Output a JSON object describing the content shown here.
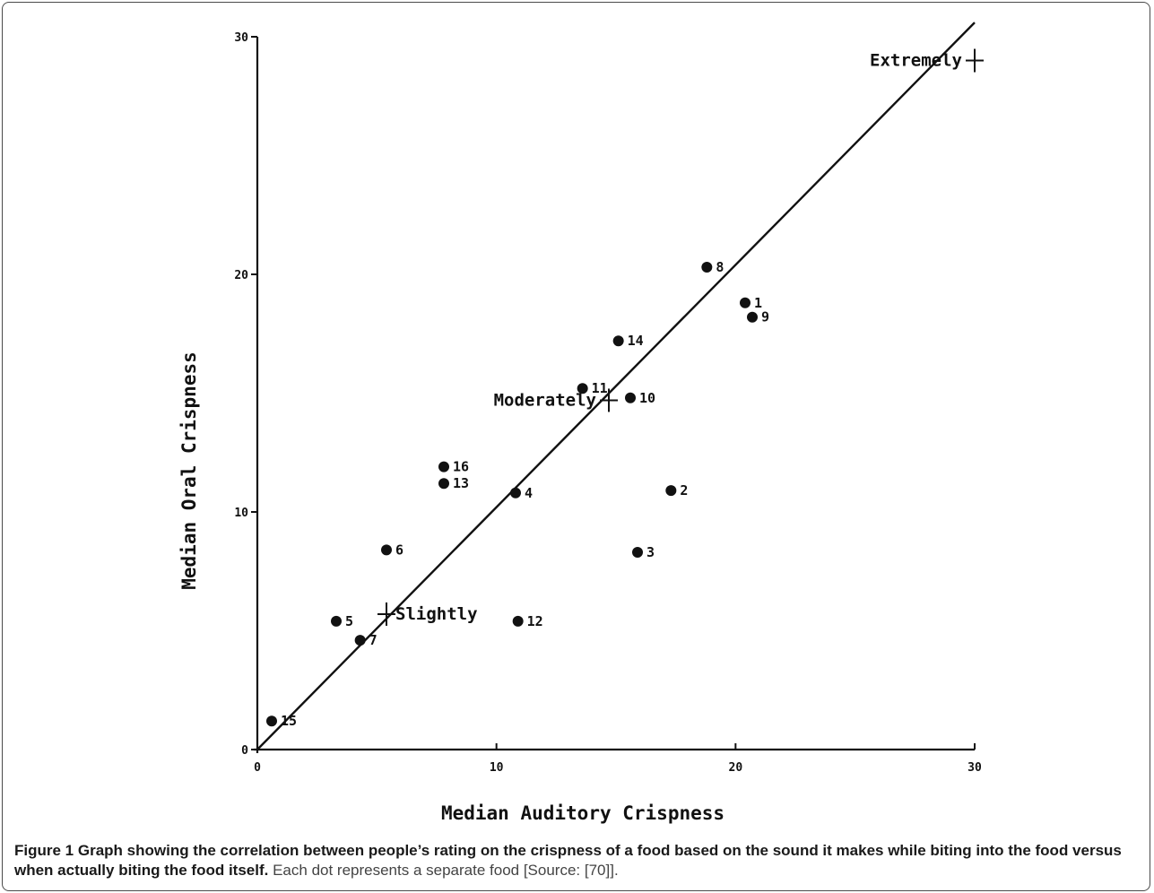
{
  "caption": {
    "figure_label": "Figure 1",
    "bold_text": "Graph showing the correlation between people’s rating on the crispness of a food based on the sound it makes while biting into the food versus when actually biting the food itself.",
    "normal_text": "Each dot represents a separate food [Source: [70]]."
  },
  "chart_data": {
    "type": "scatter",
    "xlabel": "Median Auditory Crispness",
    "ylabel": "Median Oral Crispness",
    "xlim": [
      0,
      30
    ],
    "ylim": [
      0,
      30
    ],
    "xticks": [
      "0",
      "10",
      "20",
      "30"
    ],
    "yticks": [
      "0",
      "10",
      "20",
      "30"
    ],
    "grid": false,
    "points": [
      {
        "label": "1",
        "x": 20.4,
        "y": 18.8
      },
      {
        "label": "2",
        "x": 17.3,
        "y": 10.9
      },
      {
        "label": "3",
        "x": 15.9,
        "y": 8.3
      },
      {
        "label": "4",
        "x": 10.8,
        "y": 10.8
      },
      {
        "label": "5",
        "x": 3.3,
        "y": 5.4
      },
      {
        "label": "6",
        "x": 5.4,
        "y": 8.4
      },
      {
        "label": "7",
        "x": 4.3,
        "y": 4.6
      },
      {
        "label": "8",
        "x": 18.8,
        "y": 20.3
      },
      {
        "label": "9",
        "x": 20.7,
        "y": 18.2
      },
      {
        "label": "10",
        "x": 15.6,
        "y": 14.8
      },
      {
        "label": "11",
        "x": 13.6,
        "y": 15.2
      },
      {
        "label": "12",
        "x": 10.9,
        "y": 5.4
      },
      {
        "label": "13",
        "x": 7.8,
        "y": 11.2
      },
      {
        "label": "14",
        "x": 15.1,
        "y": 17.2
      },
      {
        "label": "15",
        "x": 0.6,
        "y": 1.2
      },
      {
        "label": "16",
        "x": 7.8,
        "y": 11.9
      }
    ],
    "reference_points": [
      {
        "label": "Slightly",
        "x": 5.4,
        "y": 5.7
      },
      {
        "label": "Moderately",
        "x": 14.7,
        "y": 14.7
      },
      {
        "label": "Extremely",
        "x": 30.0,
        "y": 29.0
      }
    ],
    "fit_line": {
      "x": [
        0,
        30.0
      ],
      "y": [
        0,
        30.6
      ]
    }
  }
}
